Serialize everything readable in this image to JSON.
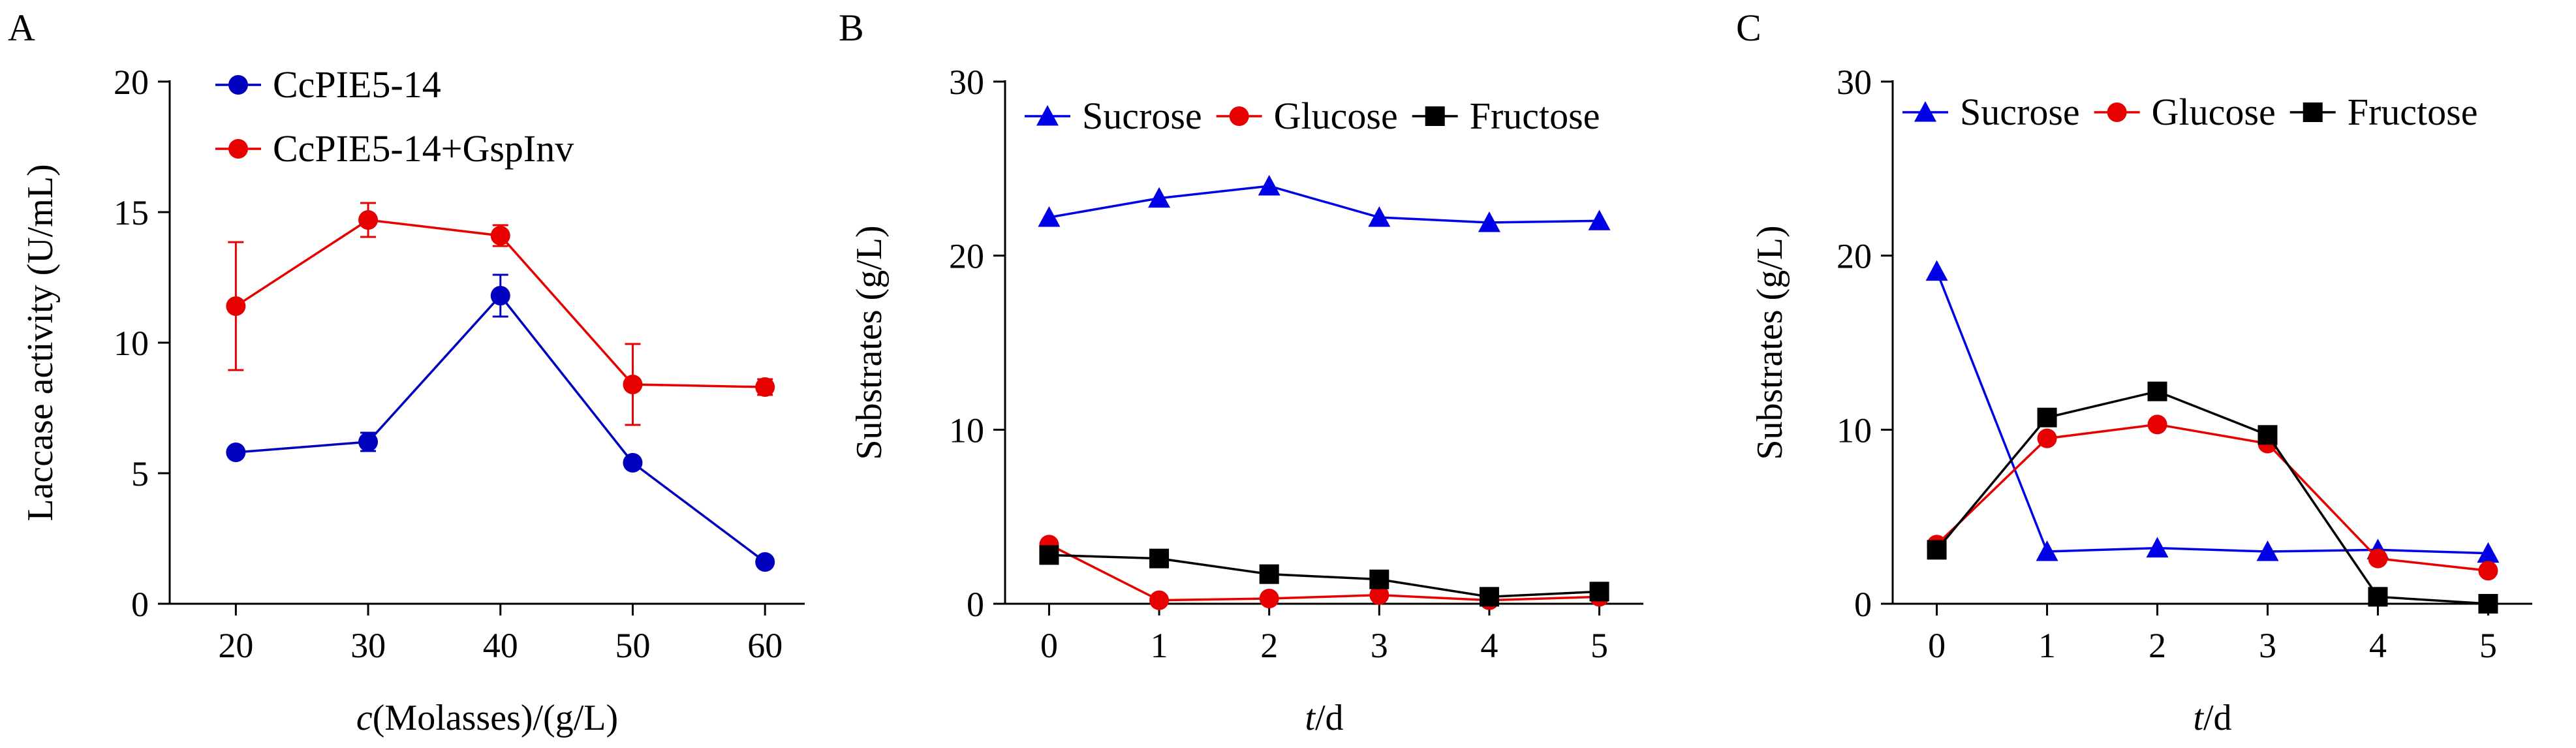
{
  "chart_data": [
    {
      "panel_label": "A",
      "type": "line",
      "xlabel_var": "c",
      "xlabel_rest": "(Molasses)/(g/L)",
      "ylabel": "Laccase activity  (U/mL)",
      "x": [
        20,
        30,
        40,
        50,
        60
      ],
      "xticks": [
        20,
        30,
        40,
        50,
        60
      ],
      "xlim": [
        15,
        63
      ],
      "ylim": [
        0,
        20
      ],
      "yticks": [
        0,
        5,
        10,
        15,
        20
      ],
      "grid": false,
      "legend_position": "top-left",
      "series": [
        {
          "name": "CcPIE5-14",
          "color": "#0000bf",
          "marker": "circle",
          "values": [
            5.8,
            6.2,
            11.8,
            5.4,
            1.6
          ],
          "errors": [
            0.15,
            0.35,
            0.8,
            0.15,
            0.15
          ]
        },
        {
          "name": "CcPIE5-14+GspInv",
          "color": "#e60000",
          "marker": "circle",
          "values": [
            11.4,
            14.7,
            14.1,
            8.4,
            8.3
          ],
          "errors": [
            2.45,
            0.65,
            0.4,
            1.55,
            0.3
          ]
        }
      ]
    },
    {
      "panel_label": "B",
      "type": "line",
      "xlabel_var": "t",
      "xlabel_rest": "/d",
      "ylabel": "Substrates (g/L)",
      "x": [
        0,
        1,
        2,
        3,
        4,
        5
      ],
      "xticks": [
        0,
        1,
        2,
        3,
        4,
        5
      ],
      "xlim": [
        -0.4,
        5.4
      ],
      "ylim": [
        0,
        30
      ],
      "yticks": [
        0,
        10,
        20,
        30
      ],
      "grid": false,
      "legend_position": "top",
      "series": [
        {
          "name": "Sucrose",
          "color": "#0000e6",
          "marker": "triangle",
          "values": [
            22.2,
            23.3,
            24.0,
            22.2,
            21.9,
            22.0
          ]
        },
        {
          "name": "Glucose",
          "color": "#e60000",
          "marker": "circle",
          "values": [
            3.4,
            0.2,
            0.3,
            0.5,
            0.2,
            0.4
          ]
        },
        {
          "name": "Fructose",
          "color": "#000000",
          "marker": "square",
          "values": [
            2.8,
            2.6,
            1.7,
            1.4,
            0.4,
            0.7
          ]
        }
      ]
    },
    {
      "panel_label": "C",
      "type": "line",
      "xlabel_var": "t",
      "xlabel_rest": "/d",
      "ylabel": "Substrates (g/L)",
      "x": [
        0,
        1,
        2,
        3,
        4,
        5
      ],
      "xticks": [
        0,
        1,
        2,
        3,
        4,
        5
      ],
      "xlim": [
        -0.4,
        5.4
      ],
      "ylim": [
        0,
        30
      ],
      "yticks": [
        0,
        10,
        20,
        30
      ],
      "grid": false,
      "legend_position": "top",
      "series": [
        {
          "name": "Sucrose",
          "color": "#0000e6",
          "marker": "triangle",
          "values": [
            19.1,
            3.0,
            3.2,
            3.0,
            3.1,
            2.9
          ]
        },
        {
          "name": "Glucose",
          "color": "#e60000",
          "marker": "circle",
          "values": [
            3.4,
            9.5,
            10.3,
            9.2,
            2.6,
            1.9
          ]
        },
        {
          "name": "Fructose",
          "color": "#000000",
          "marker": "square",
          "values": [
            3.1,
            10.7,
            12.2,
            9.7,
            0.4,
            0.0
          ]
        }
      ]
    }
  ]
}
